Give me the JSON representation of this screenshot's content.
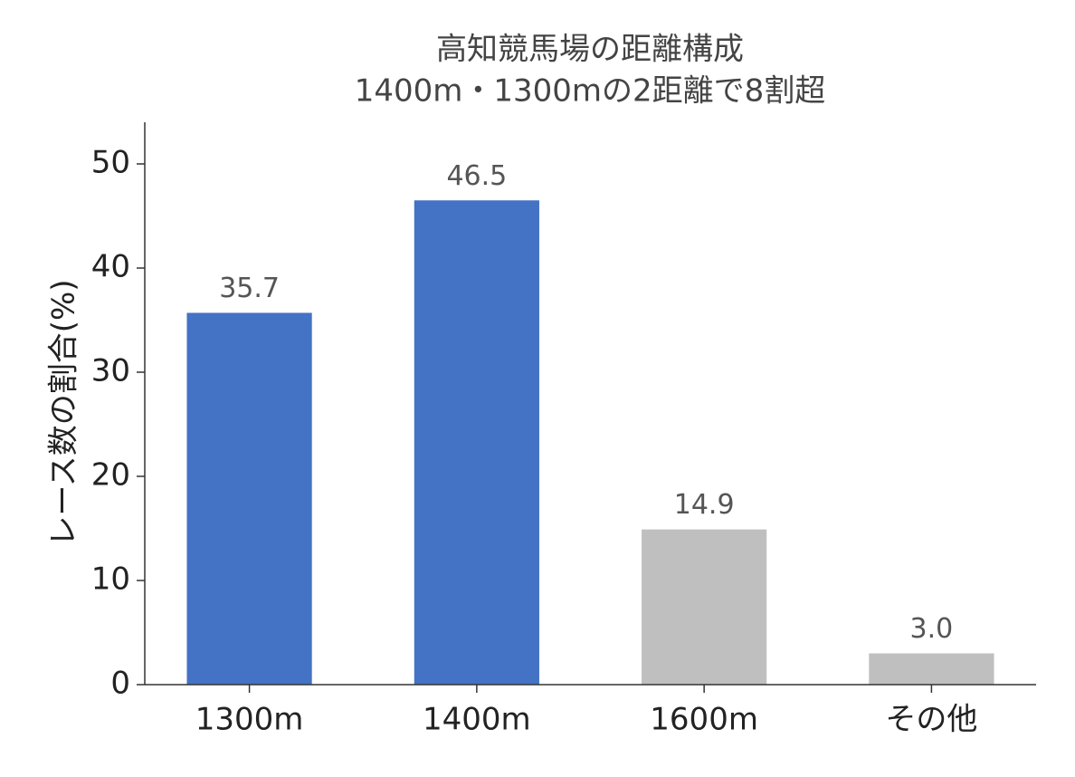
{
  "chart_data": {
    "type": "bar",
    "title": "高知競馬場の距離構成",
    "subtitle": "1400m・1300mの2距離で8割超",
    "y_label": "レース数の割合(%)",
    "categories": [
      "1300m",
      "1400m",
      "1600m",
      "その他"
    ],
    "values": [
      35.7,
      46.5,
      14.9,
      3.0
    ],
    "value_labels": [
      "35.7",
      "46.5",
      "14.9",
      "3.0"
    ],
    "colors": [
      "#4472c4",
      "#4472c4",
      "#bfbfbf",
      "#bfbfbf"
    ],
    "ylim": [
      0,
      54
    ],
    "yticks": [
      0,
      10,
      20,
      30,
      40,
      50
    ],
    "grid": false
  }
}
